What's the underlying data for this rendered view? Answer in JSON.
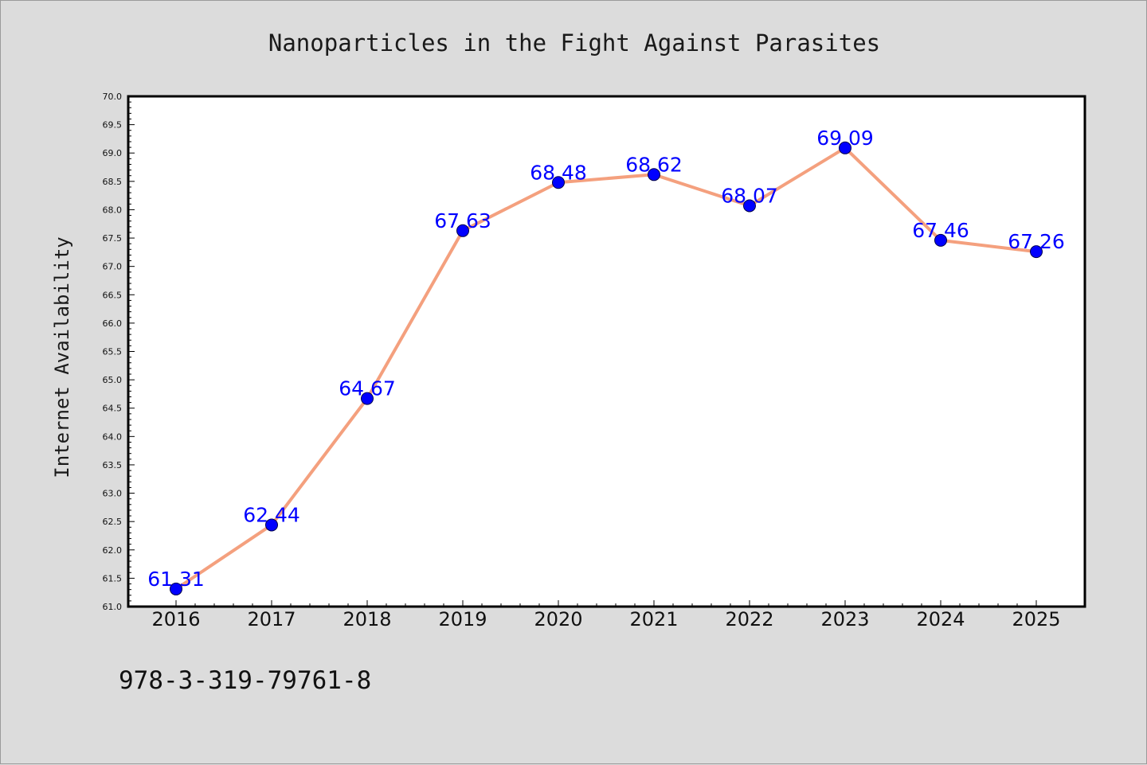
{
  "footer_text": "978-3-319-79761-8",
  "colors": {
    "background": "#dcdcdc",
    "plot_background": "#ffffff",
    "line": "#f4a07e",
    "marker": "#0000ff",
    "data_label": "#0000ff"
  },
  "chart_data": {
    "type": "line",
    "title": "Nanoparticles in the Fight Against Parasites",
    "xlabel": "",
    "ylabel": "Internet Availability",
    "categories": [
      "2016",
      "2017",
      "2018",
      "2019",
      "2020",
      "2021",
      "2022",
      "2023",
      "2024",
      "2025"
    ],
    "values": [
      61.31,
      62.44,
      64.67,
      67.63,
      68.48,
      68.62,
      68.07,
      69.09,
      67.46,
      67.26
    ],
    "data_labels": [
      "61.31",
      "62.44",
      "64.67",
      "67.63",
      "68.48",
      "68.62",
      "68.07",
      "69.09",
      "67.46",
      "67.26"
    ],
    "ylim": [
      61.0,
      70.0
    ],
    "yticks": [
      "61.0",
      "61.5",
      "62.0",
      "62.5",
      "63.0",
      "63.5",
      "64.0",
      "64.5",
      "65.0",
      "65.5",
      "66.0",
      "66.5",
      "67.0",
      "67.5",
      "68.0",
      "68.5",
      "69.0",
      "69.5",
      "70.0"
    ],
    "grid": false,
    "legend": "none"
  }
}
